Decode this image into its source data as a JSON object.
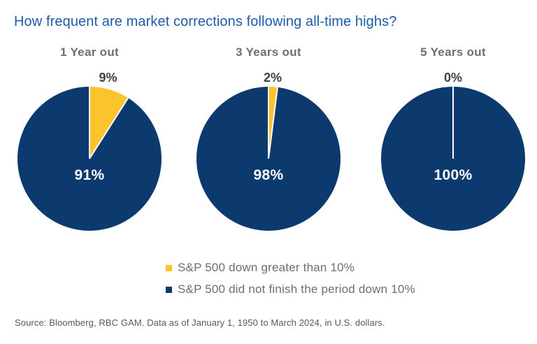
{
  "title": {
    "text": "How frequent are market corrections following all-time highs?",
    "color": "#1E5CA9"
  },
  "chart_data": {
    "type": "pie",
    "title": "How frequent are market corrections following all-time highs?",
    "legend_position": "bottom",
    "colors": {
      "highlight": "#FBC42C",
      "base": "#0D3A6E"
    },
    "pies": [
      {
        "label": "1 Year out",
        "callout": "9%",
        "center_label": "91%",
        "slices": [
          {
            "name": "S&P 500 down greater than 10%",
            "value": 9
          },
          {
            "name": "S&P 500 did not finish the period down 10%",
            "value": 91
          }
        ]
      },
      {
        "label": "3 Years out",
        "callout": "2%",
        "center_label": "98%",
        "slices": [
          {
            "name": "S&P 500 down greater than 10%",
            "value": 2
          },
          {
            "name": "S&P 500 did not finish the period down 10%",
            "value": 98
          }
        ]
      },
      {
        "label": "5 Years out",
        "callout": "0%",
        "center_label": "100%",
        "slices": [
          {
            "name": "S&P 500 down greater than 10%",
            "value": 0
          },
          {
            "name": "S&P 500 did not finish the period down 10%",
            "value": 100
          }
        ]
      }
    ]
  },
  "legend": {
    "items": [
      {
        "label": "S&P 500 down greater than 10%",
        "color": "#FBC42C"
      },
      {
        "label": "S&P 500 did not finish the period down 10%",
        "color": "#0D3A6E"
      }
    ]
  },
  "source": {
    "text": "Source: Bloomberg, RBC GAM. Data as of January 1, 1950 to March 2024, in U.S. dollars."
  }
}
